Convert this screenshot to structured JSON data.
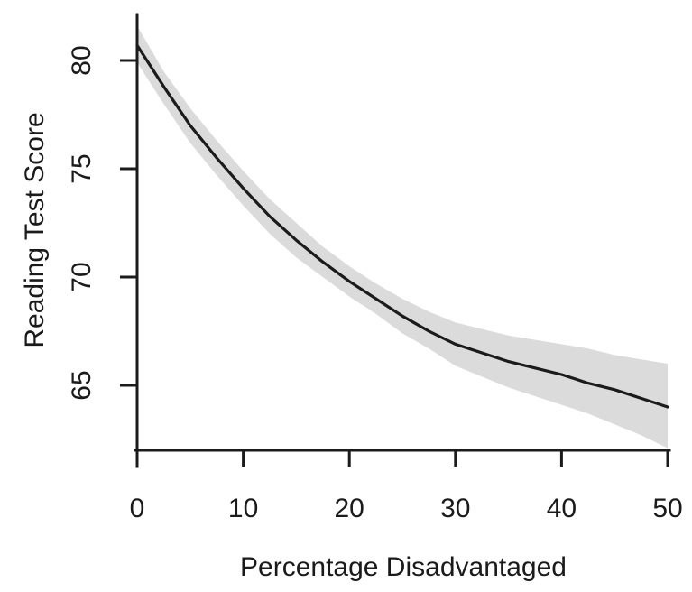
{
  "figure": {
    "background": "#ffffff",
    "colors": {
      "line": "#1b1b1b",
      "band": "#dbdbdb",
      "axis": "#1b1b1b",
      "text": "#1a1a1a"
    }
  },
  "chart_data": {
    "type": "line",
    "title": "",
    "xlabel": "Percentage Disadvantaged",
    "ylabel": "Reading Test Score",
    "xlim": [
      0,
      50
    ],
    "ylim": [
      62,
      82
    ],
    "grid": false,
    "legend": "none",
    "x_ticks": {
      "values": [
        0,
        10,
        20,
        30,
        40,
        50
      ],
      "labels": [
        "0",
        "10",
        "20",
        "30",
        "40",
        "50"
      ]
    },
    "y_ticks": {
      "values": [
        65,
        70,
        75,
        80
      ],
      "labels": [
        "65",
        "70",
        "75",
        "80"
      ]
    },
    "series": [
      {
        "name": "fitted-line",
        "type": "line",
        "x": [
          0,
          2.5,
          5,
          7.5,
          10,
          12.5,
          15,
          17.5,
          20,
          22.5,
          25,
          27.5,
          30,
          32.5,
          35,
          37.5,
          40,
          42.5,
          45,
          47.5,
          50
        ],
        "y": [
          80.7,
          78.8,
          77.0,
          75.5,
          74.1,
          72.8,
          71.7,
          70.7,
          69.8,
          69.0,
          68.2,
          67.5,
          66.9,
          66.5,
          66.1,
          65.8,
          65.5,
          65.1,
          64.8,
          64.4,
          64.0
        ]
      },
      {
        "name": "confidence-band",
        "type": "band",
        "x": [
          0,
          2.5,
          5,
          7.5,
          10,
          12.5,
          15,
          17.5,
          20,
          22.5,
          25,
          27.5,
          30,
          32.5,
          35,
          37.5,
          40,
          42.5,
          45,
          47.5,
          50
        ],
        "upper": [
          81.6,
          79.5,
          77.8,
          76.3,
          74.9,
          73.6,
          72.5,
          71.4,
          70.5,
          69.7,
          69.0,
          68.4,
          67.9,
          67.6,
          67.3,
          67.1,
          66.9,
          66.7,
          66.4,
          66.2,
          66.0
        ],
        "lower": [
          79.9,
          78.0,
          76.2,
          74.7,
          73.3,
          72.0,
          70.9,
          70.0,
          69.1,
          68.3,
          67.4,
          66.7,
          65.9,
          65.4,
          64.9,
          64.5,
          64.1,
          63.7,
          63.2,
          62.7,
          62.1
        ]
      }
    ]
  }
}
